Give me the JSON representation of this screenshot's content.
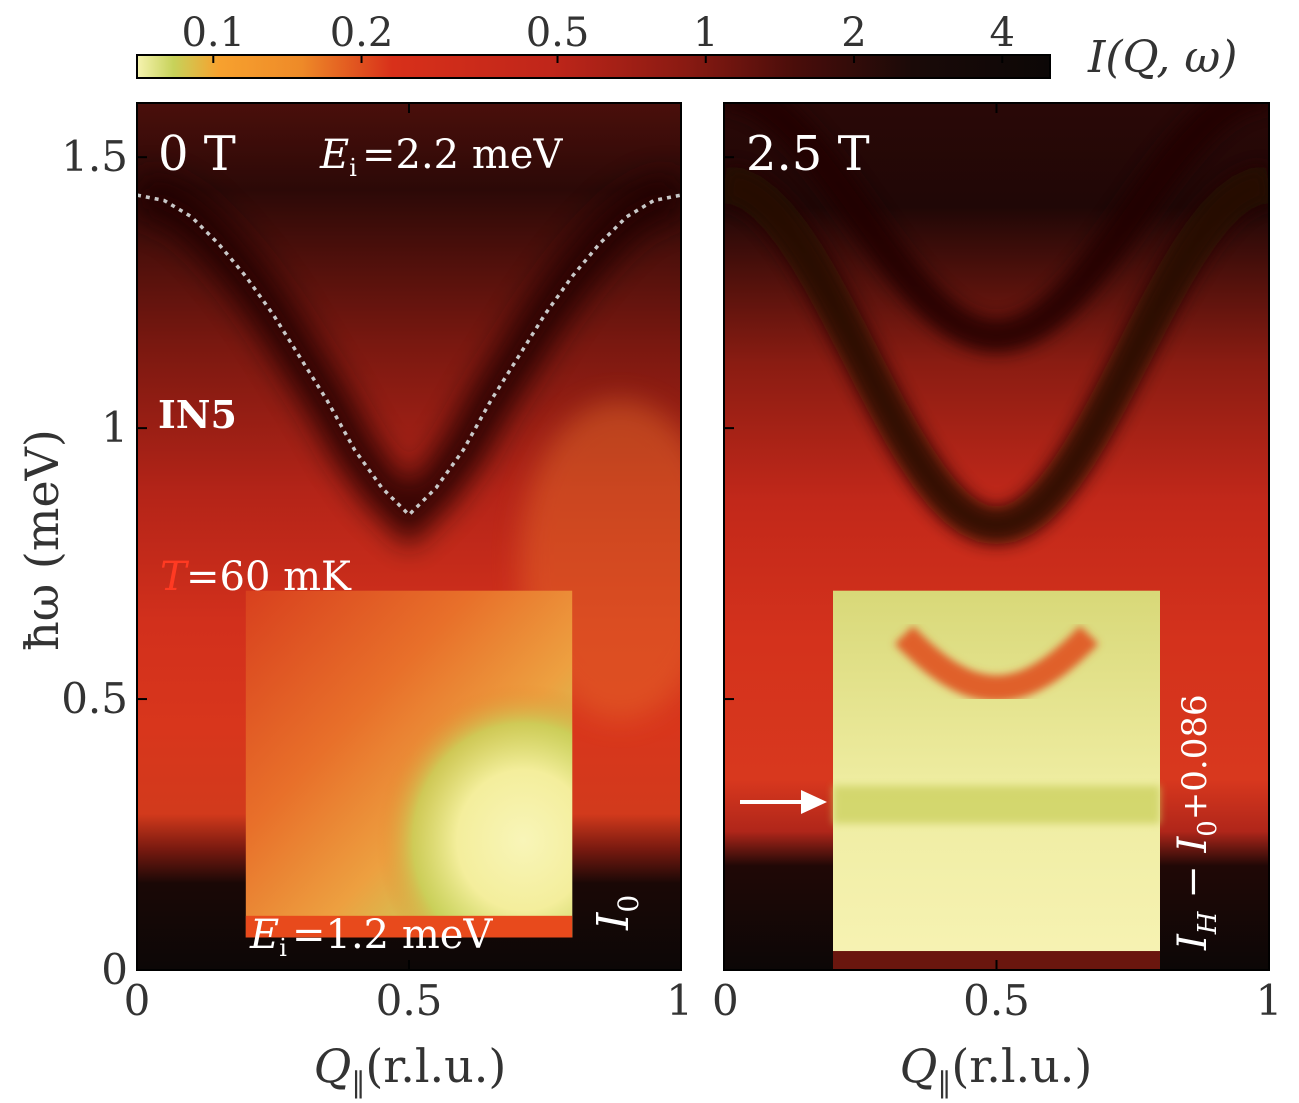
{
  "chart_data": [
    {
      "type": "heatmap",
      "panel_label": "0 T",
      "annotations": {
        "incident_energy_main": "=2.2 meV",
        "incident_energy_inset": "=1.2 meV",
        "instrument": "IN5",
        "temperature": "=60 mK",
        "inset_label": "I",
        "inset_label_sub": "0"
      },
      "xlabel": "Q",
      "xlabel_sub": "‖",
      "xlabel_units": "(r.l.u.)",
      "ylabel": "ħω (meV)",
      "xlim": [
        0,
        1
      ],
      "ylim": [
        0,
        1.6
      ],
      "x_ticks": [
        {
          "value": 0,
          "label": "0"
        },
        {
          "value": 0.5,
          "label": "0.5"
        },
        {
          "value": 1,
          "label": "1"
        }
      ],
      "y_ticks": [
        {
          "value": 0,
          "label": "0"
        },
        {
          "value": 0.5,
          "label": "0.5"
        },
        {
          "value": 1,
          "label": "1"
        },
        {
          "value": 1.5,
          "label": "1.5"
        }
      ],
      "inset_region": {
        "x": [
          0.2,
          0.8
        ],
        "y": [
          0.06,
          0.7
        ]
      },
      "dispersion_curve": {
        "q": [
          0,
          0.05,
          0.1,
          0.15,
          0.2,
          0.25,
          0.3,
          0.35,
          0.4,
          0.45,
          0.5,
          0.55,
          0.6,
          0.65,
          0.7,
          0.75,
          0.8,
          0.85,
          0.9,
          0.95,
          1
        ],
        "energy": [
          1.43,
          1.42,
          1.39,
          1.34,
          1.28,
          1.21,
          1.13,
          1.05,
          0.96,
          0.89,
          0.84,
          0.89,
          0.96,
          1.05,
          1.13,
          1.21,
          1.28,
          1.34,
          1.39,
          1.42,
          1.43
        ]
      }
    },
    {
      "type": "heatmap",
      "panel_label": "2.5 T",
      "annotations": {
        "inset_label": "I",
        "inset_label_sub": "H",
        "inset_label_minus": " − ",
        "inset_label2": "I",
        "inset_label2_sub": "0",
        "inset_offset": "+0.086"
      },
      "xlabel": "Q",
      "xlabel_sub": "‖",
      "xlabel_units": "(r.l.u.)",
      "xlim": [
        0,
        1
      ],
      "ylim": [
        0,
        1.6
      ],
      "x_ticks": [
        {
          "value": 0,
          "label": "0"
        },
        {
          "value": 0.5,
          "label": "0.5"
        },
        {
          "value": 1,
          "label": "1"
        }
      ],
      "inset_region": {
        "x": [
          0.2,
          0.8
        ],
        "y": [
          0.0,
          0.7
        ]
      },
      "arrow_energy": 0.31
    }
  ],
  "colorbar": {
    "label": "I(Q, ω)",
    "scale": "log",
    "range": [
      0.07,
      5
    ],
    "ticks": [
      {
        "value": 0.1,
        "label": "0.1"
      },
      {
        "value": 0.2,
        "label": "0.2"
      },
      {
        "value": 0.5,
        "label": "0.5"
      },
      {
        "value": 1,
        "label": "1"
      },
      {
        "value": 2,
        "label": "2"
      },
      {
        "value": 4,
        "label": "4"
      }
    ],
    "colors": [
      "#f6f3b0",
      "#c7d25a",
      "#f7a12e",
      "#e8651e",
      "#d8301a",
      "#9a1a12",
      "#4a0d0a",
      "#0c0706"
    ]
  },
  "colors": {
    "dark": "#0c0706",
    "maroon": "#5a120c",
    "red": "#c4261a",
    "orange": "#e8802a",
    "yellow_green": "#c8d35a",
    "cream": "#f7f3b4",
    "dotted_curve": "#c8c8c8",
    "text_white": "#ffffff",
    "text_red": "#ff3a22",
    "axis_text": "#222222"
  }
}
